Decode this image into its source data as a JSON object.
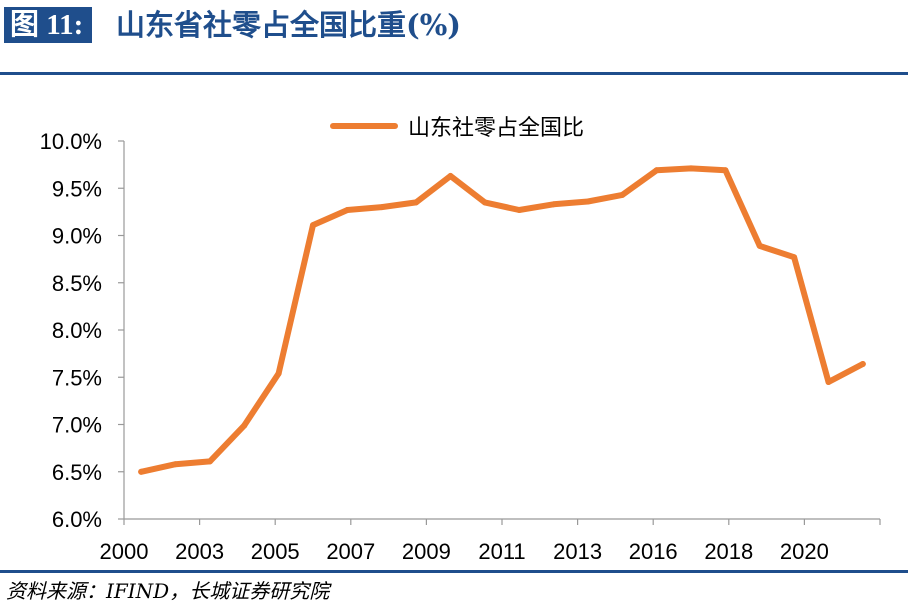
{
  "header": {
    "figure_label": "图 11:",
    "title": "山东省社零占全国比重(%)"
  },
  "source": "资料来源：IFIND，长城证券研究院",
  "colors": {
    "brand": "#1f4e8c",
    "series": "#ed7d31",
    "axis": "#999999",
    "text": "#000000"
  },
  "chart_data": {
    "type": "line",
    "title": "",
    "xlabel": "",
    "ylabel": "",
    "legend_position": "top-center",
    "grid": false,
    "ylim": [
      6.0,
      10.0
    ],
    "y_ticks": [
      "6.0%",
      "6.5%",
      "7.0%",
      "7.5%",
      "8.0%",
      "8.5%",
      "9.0%",
      "9.5%",
      "10.0%"
    ],
    "x_tick_labels": [
      "2000",
      "2003",
      "2005",
      "2007",
      "2009",
      "2011",
      "2013",
      "2016",
      "2018",
      "2020"
    ],
    "x": [
      "2000",
      "2001",
      "2002",
      "2003",
      "2004",
      "2005",
      "2006",
      "2007",
      "2008",
      "2009",
      "2010",
      "2011",
      "2012",
      "2013",
      "2014",
      "2015",
      "2016",
      "2017",
      "2018",
      "2019",
      "2020",
      "2021"
    ],
    "series": [
      {
        "name": "山东社零占全国比",
        "color": "#ed7d31",
        "values": [
          6.5,
          6.58,
          6.61,
          6.99,
          7.54,
          9.11,
          9.27,
          9.3,
          9.35,
          9.63,
          9.35,
          9.27,
          9.33,
          9.36,
          9.43,
          9.69,
          9.71,
          9.69,
          8.89,
          8.77,
          7.45,
          7.64
        ]
      }
    ]
  }
}
